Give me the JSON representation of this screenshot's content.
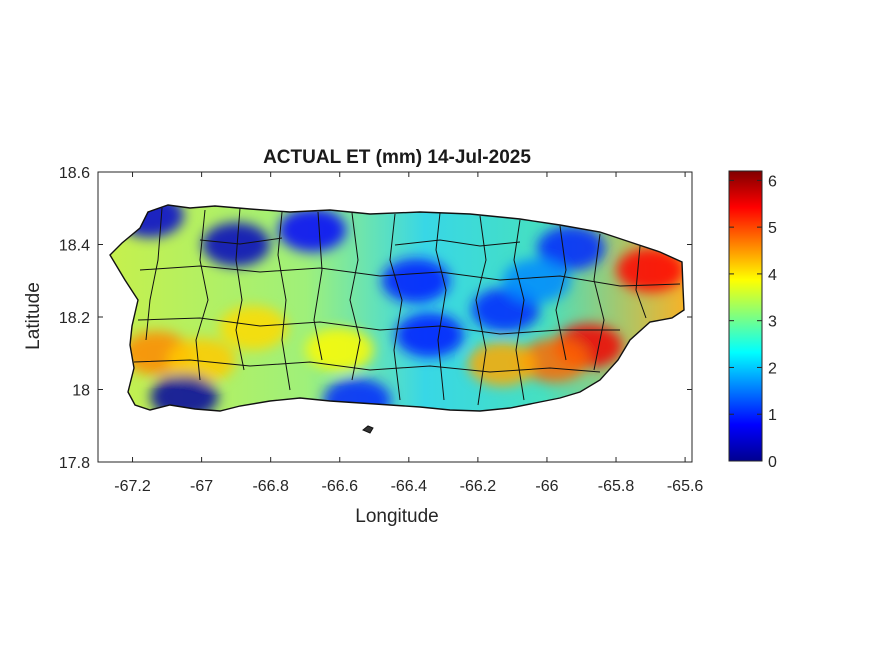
{
  "title": "ACTUAL ET (mm) 14-Jul-2025",
  "map": {
    "xlabel": "Longitude",
    "ylabel": "Latitude",
    "xlim": [
      -67.3,
      -65.58
    ],
    "ylim": [
      17.8,
      18.6
    ],
    "xticks": [
      -67.2,
      -67,
      -66.8,
      -66.6,
      -66.4,
      -66.2,
      -66,
      -65.8,
      -65.6
    ],
    "xtick_labels": [
      "-67.2",
      "-67",
      "-66.8",
      "-66.6",
      "-66.4",
      "-66.2",
      "-66",
      "-65.8",
      "-65.6"
    ],
    "yticks": [
      17.8,
      18,
      18.2,
      18.4,
      18.6
    ],
    "ytick_labels": [
      "17.8",
      "18",
      "18.2",
      "18.4",
      "18.6"
    ],
    "colormap": "jet",
    "colorbar": {
      "range": [
        0,
        6.2
      ],
      "ticks": [
        0,
        1,
        2,
        3,
        4,
        5,
        6
      ],
      "tick_labels": [
        "0",
        "1",
        "2",
        "3",
        "4",
        "5",
        "6"
      ]
    },
    "hotspots": [
      {
        "lon": -65.7,
        "lat": 18.33,
        "et": 5.4
      },
      {
        "lon": -65.88,
        "lat": 18.12,
        "et": 5.5
      },
      {
        "lon": -65.98,
        "lat": 18.08,
        "et": 4.8
      },
      {
        "lon": -66.13,
        "lat": 18.07,
        "et": 4.4
      },
      {
        "lon": -67.13,
        "lat": 18.1,
        "et": 4.6
      },
      {
        "lon": -66.85,
        "lat": 18.17,
        "et": 4.1
      },
      {
        "lon": -67.0,
        "lat": 18.08,
        "et": 4.2
      },
      {
        "lon": -66.6,
        "lat": 18.11,
        "et": 3.9
      },
      {
        "lon": -66.9,
        "lat": 18.4,
        "et": 0.4
      },
      {
        "lon": -66.68,
        "lat": 18.44,
        "et": 0.8
      },
      {
        "lon": -66.38,
        "lat": 18.3,
        "et": 0.9
      },
      {
        "lon": -66.34,
        "lat": 18.15,
        "et": 0.9
      },
      {
        "lon": -66.12,
        "lat": 18.22,
        "et": 1.0
      },
      {
        "lon": -65.93,
        "lat": 18.39,
        "et": 1.0
      },
      {
        "lon": -67.05,
        "lat": 17.98,
        "et": 0.2
      },
      {
        "lon": -66.55,
        "lat": 17.97,
        "et": 1.0
      },
      {
        "lon": -67.15,
        "lat": 18.48,
        "et": 0.5
      },
      {
        "lon": -66.03,
        "lat": 18.3,
        "et": 1.6
      }
    ]
  }
}
